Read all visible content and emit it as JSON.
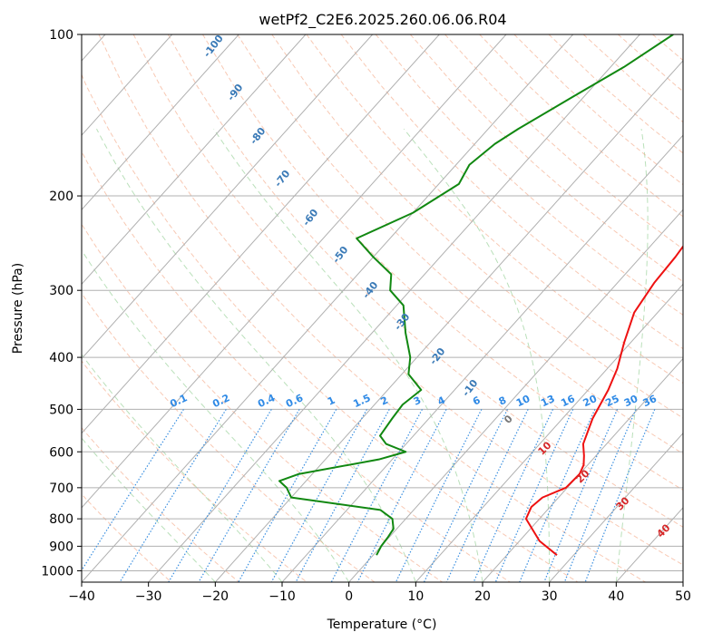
{
  "chart_data": {
    "type": "line",
    "title": "wetPf2_C2E6.2025.260.06.06.R04",
    "xlabel": "Temperature (°C)",
    "ylabel": "Pressure (hPa)",
    "xlim": [
      -40,
      50
    ],
    "ylim": [
      1050,
      100
    ],
    "x_ticks": [
      -40,
      -30,
      -20,
      -10,
      0,
      10,
      20,
      30,
      40,
      50
    ],
    "y_ticks": [
      100,
      200,
      300,
      400,
      500,
      600,
      700,
      800,
      900,
      1000
    ],
    "skew_deg_per_log_unit": 72,
    "series": [
      {
        "name": "temperature",
        "color": "#ee1111",
        "points": [
          [
            27.5,
            935
          ],
          [
            23,
            880
          ],
          [
            18,
            800
          ],
          [
            17.2,
            760
          ],
          [
            17.6,
            730
          ],
          [
            19.8,
            700
          ],
          [
            20,
            660
          ],
          [
            19.4,
            635
          ],
          [
            18.2,
            610
          ],
          [
            16.5,
            580
          ],
          [
            14.5,
            520
          ],
          [
            13,
            460
          ],
          [
            11.5,
            420
          ],
          [
            9,
            375
          ],
          [
            6.5,
            330
          ],
          [
            5.5,
            290
          ],
          [
            5.2,
            260
          ],
          [
            4.5,
            230
          ],
          [
            2,
            200
          ],
          [
            -1,
            175
          ],
          [
            -3.5,
            150
          ],
          [
            -5.5,
            140
          ],
          [
            -8,
            125
          ],
          [
            -10,
            115
          ],
          [
            -10.5,
            100
          ]
        ]
      },
      {
        "name": "dewpoint",
        "color": "#118811",
        "points": [
          [
            0.5,
            935
          ],
          [
            0,
            900
          ],
          [
            -0.2,
            865
          ],
          [
            -0.5,
            835
          ],
          [
            -2,
            800
          ],
          [
            -5,
            770
          ],
          [
            -20,
            730
          ],
          [
            -22,
            700
          ],
          [
            -24,
            680
          ],
          [
            -22,
            660
          ],
          [
            -12,
            620
          ],
          [
            -9,
            600
          ],
          [
            -13,
            580
          ],
          [
            -15,
            560
          ],
          [
            -15.5,
            520
          ],
          [
            -15.8,
            490
          ],
          [
            -15,
            460
          ],
          [
            -19,
            430
          ],
          [
            -21,
            400
          ],
          [
            -25,
            360
          ],
          [
            -29,
            320
          ],
          [
            -33,
            300
          ],
          [
            -35,
            280
          ],
          [
            -40,
            260
          ],
          [
            -45,
            240
          ],
          [
            -40,
            215
          ],
          [
            -37,
            190
          ],
          [
            -38,
            175
          ],
          [
            -37,
            160
          ],
          [
            -35.5,
            150
          ],
          [
            -31.5,
            130
          ],
          [
            -28,
            115
          ],
          [
            -25,
            100
          ]
        ]
      }
    ],
    "dry_adiabats": [
      -30,
      -20,
      -10,
      0,
      10,
      20,
      30,
      40,
      50,
      60,
      70,
      80,
      90,
      100,
      110,
      120,
      130,
      140,
      150,
      160,
      170,
      180,
      190,
      200,
      210,
      220
    ],
    "moist_adiabats": [
      -20,
      -10,
      0,
      10,
      20,
      30,
      40
    ],
    "mixing_ratio_lines": [
      "0.1",
      "0.2",
      "0.4",
      "0.6",
      "1",
      "1.5",
      "2",
      "3",
      "4",
      "6",
      "8",
      "10",
      "13",
      "16",
      "20",
      "25",
      "30",
      "36"
    ],
    "temperature_line_labels": [
      "-100",
      "-90",
      "-80",
      "-70",
      "-60",
      "-50",
      "-40",
      "-30",
      "-20",
      "-10"
    ],
    "moist_adiabat_labels": [
      "0",
      "10",
      "20",
      "30",
      "40"
    ]
  }
}
